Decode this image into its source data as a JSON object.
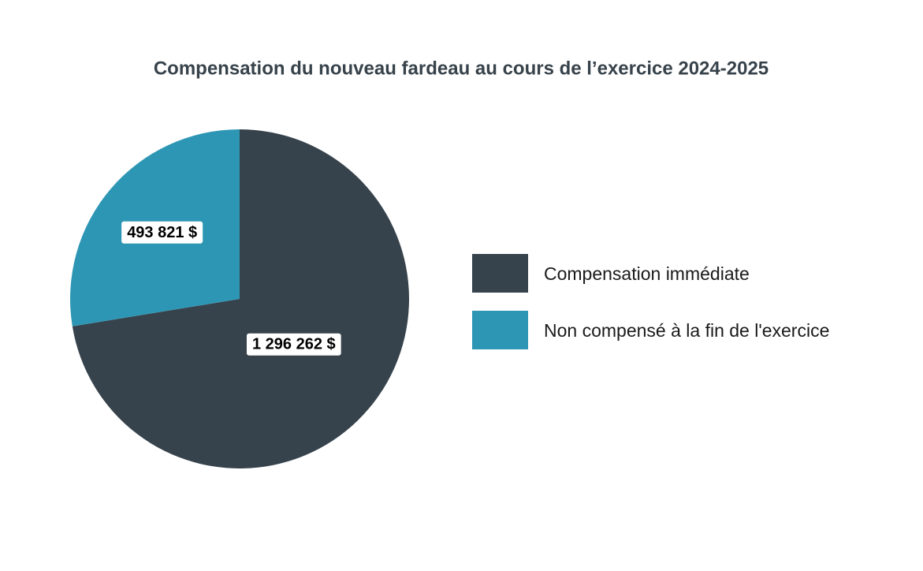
{
  "chart_data": {
    "type": "pie",
    "title": "Compensation du nouveau fardeau au cours de l’exercice 2024-2025",
    "categories": [
      "Compensation immédiate",
      "Non compensé à la fin de l'exercice"
    ],
    "values": [
      1296262,
      493821
    ],
    "value_labels": [
      "1 296 262 $",
      "493 821 $"
    ],
    "colors": [
      "#37434c",
      "#2e96b5"
    ],
    "legend": "right"
  }
}
